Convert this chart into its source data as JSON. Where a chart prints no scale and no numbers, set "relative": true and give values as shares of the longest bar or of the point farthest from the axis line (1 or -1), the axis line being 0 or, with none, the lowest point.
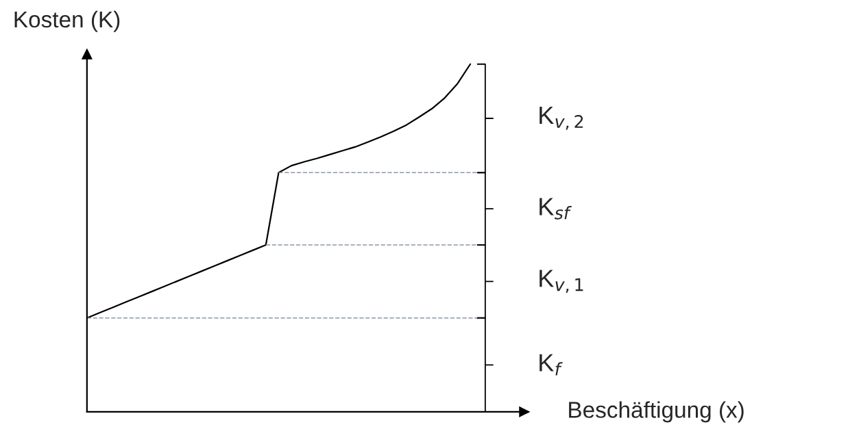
{
  "chart_data": {
    "type": "line",
    "relative": true,
    "xlabel": "Beschäftigung (x)",
    "ylabel": "Kosten (K)",
    "categories": [
      null,
      null,
      null,
      null,
      null,
      null,
      null,
      null,
      null,
      null,
      null,
      null,
      null,
      null,
      null,
      null,
      null,
      null,
      null,
      null,
      null,
      null,
      null,
      null,
      null,
      null,
      null,
      null,
      null,
      null,
      null
    ],
    "series": [
      {
        "color": "#000000",
        "values": [
          0.27,
          0.285,
          0.3,
          0.315,
          0.33,
          0.345,
          0.36,
          0.375,
          0.39,
          0.405,
          0.42,
          0.435,
          0.45,
          0.465,
          0.48,
          0.688,
          0.708,
          0.719,
          0.729,
          0.74,
          0.751,
          0.762,
          0.776,
          0.791,
          0.807,
          0.825,
          0.848,
          0.872,
          0.903,
          0.944,
          1.0
        ]
      }
    ],
    "ref_lines": [
      {
        "axis": "y",
        "value": 0.27,
        "color": "#8a97a8",
        "line_style": "dashed"
      },
      {
        "axis": "y",
        "value": 0.48,
        "color": "#8a97a8",
        "line_style": "dashed"
      },
      {
        "axis": "y",
        "value": 0.688,
        "color": "#8a97a8",
        "line_style": "dashed"
      }
    ],
    "annotations": [
      "K$_{v,2}$",
      "K$_{sf}$",
      "K$_{v,1}$",
      "K$_{f}$"
    ],
    "marker": "none",
    "line_style": "solid"
  }
}
